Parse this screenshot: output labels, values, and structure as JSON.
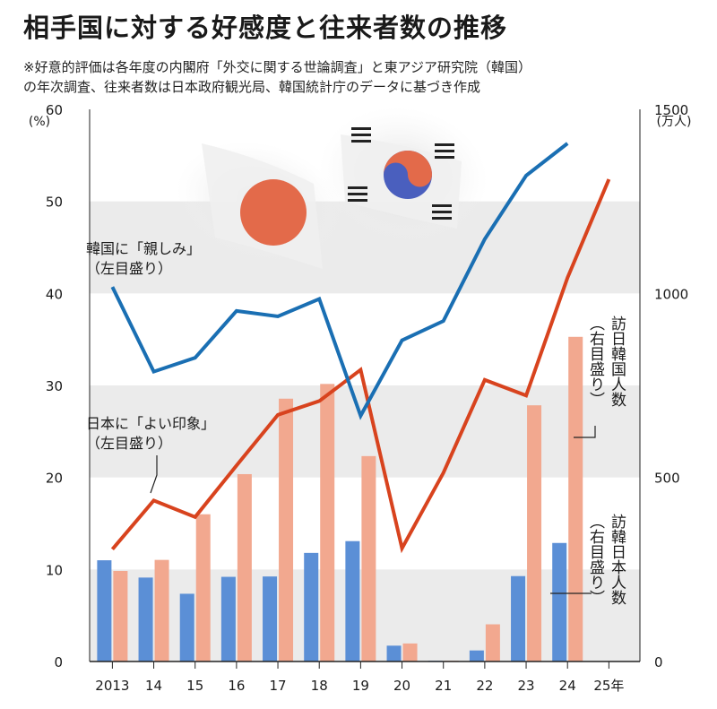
{
  "title": "相手国に対する好感度と往来者数の推移",
  "note_line1": "※好意的評価は各年度の内閣府「外交に関する世論調査」と東アジア研究院（韓国）",
  "note_line2": "の年次調査、往来者数は日本政府観光局、韓国統計庁のデータに基づき作成",
  "left_unit": "(%)",
  "right_unit": "(万人)",
  "annotations": {
    "korea_line_1": "韓国に「親しみ」",
    "korea_line_2": "（左目盛り）",
    "japan_line_1": "日本に「よい印象」",
    "japan_line_2": "（左目盛り）",
    "visitors_to_japan_1": "訪日韓国人数",
    "visitors_to_japan_2": "（右目盛り）",
    "visitors_to_korea_1": "訪韓日本人数",
    "visitors_to_korea_2": "（右目盛り）"
  },
  "colors": {
    "korea_line": "#1a6fb3",
    "japan_line": "#d8431e",
    "visitors_to_japan_bar": "#f2a88f",
    "visitors_to_korea_bar": "#5b8fd6",
    "band": "#ebebeb"
  },
  "chart_data": {
    "type": "bar",
    "categories": [
      "2013",
      "14",
      "15",
      "16",
      "17",
      "18",
      "19",
      "20",
      "21",
      "22",
      "23",
      "24",
      "25年"
    ],
    "left_axis": {
      "min": 0,
      "max": 60,
      "ticks": [
        0,
        10,
        20,
        30,
        40,
        50,
        60
      ]
    },
    "right_axis": {
      "min": 0,
      "max": 1500,
      "ticks": [
        0,
        500,
        1000,
        1500
      ]
    },
    "series": [
      {
        "name": "韓国に「親しみ」",
        "type": "line",
        "axis": "left",
        "values": [
          40.7,
          31.5,
          33.0,
          38.1,
          37.5,
          39.4,
          26.7,
          34.9,
          37.0,
          45.9,
          52.8,
          56.3,
          null
        ]
      },
      {
        "name": "日本に「よい印象」",
        "type": "line",
        "axis": "left",
        "values": [
          12.2,
          17.5,
          15.7,
          21.3,
          26.8,
          28.3,
          31.7,
          12.3,
          20.5,
          30.6,
          28.9,
          41.7,
          52.4
        ]
      },
      {
        "name": "訪日韓国人数",
        "type": "bar",
        "axis": "right",
        "values": [
          246,
          276,
          400,
          509,
          714,
          754,
          558,
          49,
          2,
          101,
          696,
          882,
          null
        ]
      },
      {
        "name": "訪韓日本人数",
        "type": "bar",
        "axis": "right",
        "values": [
          275,
          228,
          184,
          230,
          231,
          295,
          327,
          43,
          2,
          30,
          232,
          322,
          null
        ]
      }
    ],
    "grid": "horizontal bands",
    "xlabel": "",
    "ylabel": ""
  }
}
